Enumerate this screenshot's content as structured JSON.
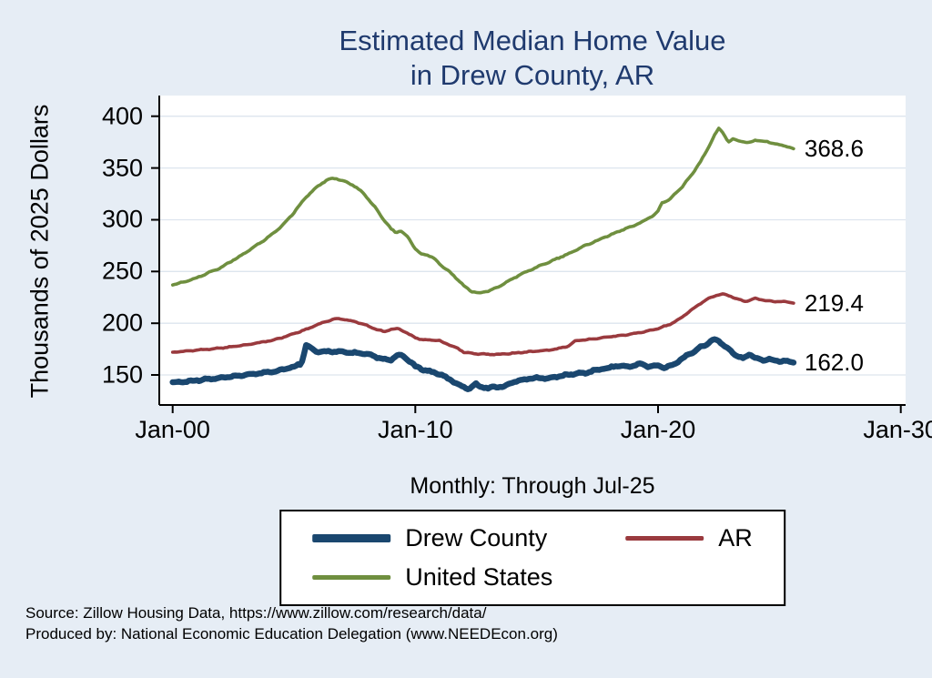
{
  "page": {
    "background": "#e6edf5"
  },
  "title": {
    "line1": "Estimated Median Home Value",
    "line2": "in Drew County, AR",
    "color": "#1f3a6e"
  },
  "y_axis": {
    "label": "Thousands of 2025 Dollars"
  },
  "x_axis": {
    "note": "Monthly: Through Jul-25"
  },
  "footer": {
    "line1": "Source: Zillow Housing Data, https://www.zillow.com/research/data/",
    "line2": "Produced by: National Economic Education Delegation (www.NEEDEcon.org)"
  },
  "legend": {
    "items": [
      {
        "label": "Drew County"
      },
      {
        "label": "AR"
      },
      {
        "label": "United States"
      }
    ]
  },
  "chart_data": {
    "type": "line",
    "title": "Estimated Median Home Value in Drew County, AR",
    "ylabel": "Thousands of 2025 Dollars",
    "x_note": "Monthly: Through Jul-25",
    "grid": "horizontal",
    "legend_position": "bottom",
    "xlim": [
      1999.45,
      2030.2
    ],
    "ylim": [
      121,
      420
    ],
    "y_ticks": [
      150,
      200,
      250,
      300,
      350,
      400
    ],
    "x_ticks": [
      {
        "label": "Jan-00",
        "year": 2000
      },
      {
        "label": "Jan-10",
        "year": 2010
      },
      {
        "label": "Jan-20",
        "year": 2020
      },
      {
        "label": "Jan-30",
        "year": 2030
      }
    ],
    "series": [
      {
        "name": "Drew County",
        "color": "#1a476f",
        "line_width": 6.5,
        "end_label": "162.0",
        "points": [
          [
            2000,
            143
          ],
          [
            2000.5,
            143.5
          ],
          [
            2001,
            145
          ],
          [
            2001.5,
            146
          ],
          [
            2002,
            147
          ],
          [
            2002.5,
            148.5
          ],
          [
            2003,
            150
          ],
          [
            2003.5,
            151.5
          ],
          [
            2004,
            153
          ],
          [
            2004.5,
            155
          ],
          [
            2005,
            158
          ],
          [
            2005.3,
            161
          ],
          [
            2005.5,
            179
          ],
          [
            2005.8,
            174
          ],
          [
            2006,
            172
          ],
          [
            2006.5,
            173
          ],
          [
            2007,
            172
          ],
          [
            2007.5,
            171.5
          ],
          [
            2008,
            170
          ],
          [
            2008.3,
            168
          ],
          [
            2008.7,
            165
          ],
          [
            2009,
            164
          ],
          [
            2009.2,
            169
          ],
          [
            2009.5,
            168
          ],
          [
            2009.8,
            163
          ],
          [
            2010,
            158
          ],
          [
            2010.5,
            154
          ],
          [
            2011,
            151
          ],
          [
            2011.3,
            147
          ],
          [
            2011.7,
            142
          ],
          [
            2012,
            138
          ],
          [
            2012.2,
            137
          ],
          [
            2012.5,
            141
          ],
          [
            2012.8,
            138
          ],
          [
            2013,
            137
          ],
          [
            2013.3,
            139
          ],
          [
            2013.6,
            138
          ],
          [
            2014,
            143
          ],
          [
            2014.5,
            146
          ],
          [
            2015,
            147
          ],
          [
            2015.5,
            147
          ],
          [
            2016,
            149
          ],
          [
            2016.5,
            151
          ],
          [
            2017,
            152
          ],
          [
            2017.5,
            155
          ],
          [
            2018,
            157
          ],
          [
            2018.3,
            159
          ],
          [
            2018.7,
            158
          ],
          [
            2019,
            159
          ],
          [
            2019.3,
            161
          ],
          [
            2019.6,
            158
          ],
          [
            2020,
            159
          ],
          [
            2020.3,
            157
          ],
          [
            2020.7,
            161
          ],
          [
            2021,
            166
          ],
          [
            2021.3,
            170
          ],
          [
            2021.7,
            176
          ],
          [
            2022,
            180
          ],
          [
            2022.3,
            184
          ],
          [
            2022.5,
            183
          ],
          [
            2022.8,
            177
          ],
          [
            2023,
            173
          ],
          [
            2023.2,
            169
          ],
          [
            2023.5,
            166
          ],
          [
            2023.8,
            170
          ],
          [
            2024,
            167
          ],
          [
            2024.3,
            164
          ],
          [
            2024.6,
            166
          ],
          [
            2024.9,
            163
          ],
          [
            2025.2,
            164
          ],
          [
            2025.583,
            162
          ]
        ]
      },
      {
        "name": "AR",
        "color": "#9a3a3e",
        "line_width": 3.6,
        "end_label": "219.4",
        "points": [
          [
            2000,
            172
          ],
          [
            2000.5,
            173
          ],
          [
            2001,
            174
          ],
          [
            2001.5,
            175
          ],
          [
            2002,
            176
          ],
          [
            2002.5,
            177.5
          ],
          [
            2003,
            179
          ],
          [
            2003.5,
            181
          ],
          [
            2004,
            183
          ],
          [
            2004.5,
            186
          ],
          [
            2005,
            190
          ],
          [
            2005.5,
            194
          ],
          [
            2006,
            199
          ],
          [
            2006.5,
            203
          ],
          [
            2006.8,
            204.5
          ],
          [
            2007.2,
            203
          ],
          [
            2007.6,
            201
          ],
          [
            2008,
            198
          ],
          [
            2008.4,
            194
          ],
          [
            2008.7,
            192
          ],
          [
            2009,
            194
          ],
          [
            2009.3,
            195
          ],
          [
            2009.6,
            191
          ],
          [
            2010,
            186
          ],
          [
            2010.3,
            184
          ],
          [
            2010.7,
            184
          ],
          [
            2011,
            183
          ],
          [
            2011.4,
            179
          ],
          [
            2011.8,
            175
          ],
          [
            2012,
            172
          ],
          [
            2012.5,
            170.5
          ],
          [
            2013,
            170
          ],
          [
            2013.5,
            170
          ],
          [
            2014,
            171
          ],
          [
            2014.5,
            172
          ],
          [
            2015,
            173
          ],
          [
            2015.5,
            174
          ],
          [
            2016,
            176
          ],
          [
            2016.3,
            178
          ],
          [
            2016.6,
            183
          ],
          [
            2017,
            184
          ],
          [
            2017.5,
            185
          ],
          [
            2018,
            187
          ],
          [
            2018.5,
            188
          ],
          [
            2019,
            190
          ],
          [
            2019.5,
            192
          ],
          [
            2020,
            195
          ],
          [
            2020.5,
            199
          ],
          [
            2021,
            206
          ],
          [
            2021.5,
            215
          ],
          [
            2022,
            223
          ],
          [
            2022.4,
            227
          ],
          [
            2022.7,
            228
          ],
          [
            2023,
            226
          ],
          [
            2023.3,
            223
          ],
          [
            2023.6,
            221
          ],
          [
            2024,
            224
          ],
          [
            2024.4,
            222
          ],
          [
            2024.8,
            221
          ],
          [
            2025.2,
            221
          ],
          [
            2025.583,
            219.4
          ]
        ]
      },
      {
        "name": "United States",
        "color": "#6f8f3f",
        "line_width": 3.6,
        "end_label": "368.6",
        "points": [
          [
            2000,
            237
          ],
          [
            2000.5,
            240
          ],
          [
            2001,
            244
          ],
          [
            2001.5,
            249
          ],
          [
            2002,
            254
          ],
          [
            2002.5,
            261
          ],
          [
            2003,
            268
          ],
          [
            2003.5,
            276
          ],
          [
            2004,
            284
          ],
          [
            2004.5,
            294
          ],
          [
            2005,
            307
          ],
          [
            2005.5,
            322
          ],
          [
            2006,
            333
          ],
          [
            2006.4,
            339
          ],
          [
            2006.7,
            340
          ],
          [
            2007,
            338
          ],
          [
            2007.4,
            334
          ],
          [
            2007.8,
            327
          ],
          [
            2008,
            322
          ],
          [
            2008.4,
            310
          ],
          [
            2008.8,
            297
          ],
          [
            2009,
            291
          ],
          [
            2009.2,
            288
          ],
          [
            2009.4,
            289
          ],
          [
            2009.7,
            283
          ],
          [
            2010,
            272
          ],
          [
            2010.2,
            267
          ],
          [
            2010.5,
            266
          ],
          [
            2010.8,
            262
          ],
          [
            2011,
            257
          ],
          [
            2011.4,
            250
          ],
          [
            2011.8,
            241
          ],
          [
            2012,
            236
          ],
          [
            2012.3,
            231
          ],
          [
            2012.6,
            229
          ],
          [
            2013,
            231
          ],
          [
            2013.5,
            236
          ],
          [
            2014,
            243
          ],
          [
            2014.5,
            249
          ],
          [
            2015,
            254
          ],
          [
            2015.5,
            259
          ],
          [
            2016,
            264
          ],
          [
            2016.5,
            269
          ],
          [
            2017,
            275
          ],
          [
            2017.5,
            280
          ],
          [
            2018,
            285
          ],
          [
            2018.5,
            290
          ],
          [
            2019,
            294
          ],
          [
            2019.5,
            300
          ],
          [
            2019.8,
            304
          ],
          [
            2020,
            308
          ],
          [
            2020.15,
            316
          ],
          [
            2020.5,
            320
          ],
          [
            2021,
            332
          ],
          [
            2021.4,
            344
          ],
          [
            2021.8,
            358
          ],
          [
            2022,
            366
          ],
          [
            2022.3,
            381
          ],
          [
            2022.5,
            388
          ],
          [
            2022.7,
            383
          ],
          [
            2022.9,
            375
          ],
          [
            2023.1,
            378
          ],
          [
            2023.4,
            376
          ],
          [
            2023.7,
            374
          ],
          [
            2024,
            377
          ],
          [
            2024.3,
            376
          ],
          [
            2024.6,
            375
          ],
          [
            2025,
            372
          ],
          [
            2025.3,
            371
          ],
          [
            2025.583,
            368.6
          ]
        ]
      }
    ]
  }
}
